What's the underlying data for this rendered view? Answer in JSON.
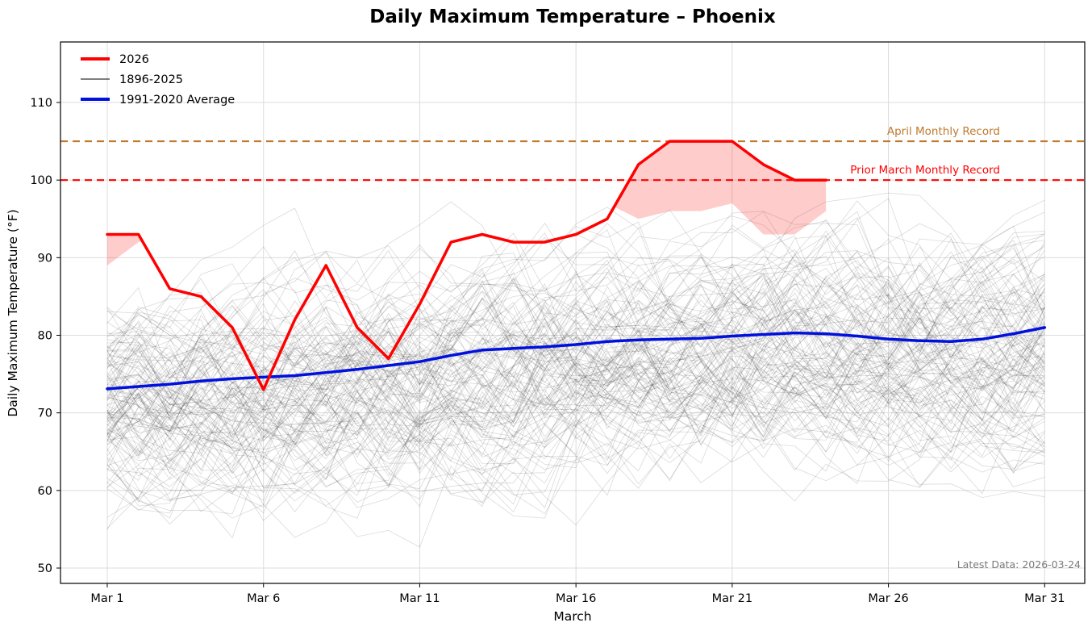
{
  "chart_data": {
    "type": "line",
    "title": "Daily Maximum Temperature – Phoenix",
    "xlabel": "March",
    "ylabel": "Daily Maximum Temperature (°F)",
    "x_tick_days": [
      1,
      6,
      11,
      16,
      21,
      26,
      31
    ],
    "x_tick_labels": [
      "Mar 1",
      "Mar 6",
      "Mar 11",
      "Mar 16",
      "Mar 21",
      "Mar 26",
      "Mar 31"
    ],
    "y_ticks": [
      50,
      60,
      70,
      80,
      90,
      100,
      110
    ],
    "ylim": [
      48,
      117.8
    ],
    "grid": true,
    "legend": [
      {
        "label": "2026",
        "color": "#ff0000"
      },
      {
        "label": "1896-2025",
        "color": "#333333"
      },
      {
        "label": "1991-2020 Average",
        "color": "#0010dd"
      }
    ],
    "series": [
      {
        "name": "2026",
        "color": "#ff0000",
        "width": 3.5,
        "start_day": 1,
        "values": [
          93,
          93,
          86,
          85,
          81,
          73,
          82,
          89,
          81,
          77,
          84,
          92,
          93,
          92,
          92,
          93,
          95,
          102,
          105,
          105,
          105,
          102,
          100,
          100
        ]
      },
      {
        "name": "1991-2020 Average",
        "color": "#0010dd",
        "width": 3.5,
        "start_day": 1,
        "values": [
          73.1,
          73.4,
          73.7,
          74.1,
          74.4,
          74.6,
          74.8,
          75.2,
          75.6,
          76.1,
          76.6,
          77.4,
          78.1,
          78.3,
          78.5,
          78.8,
          79.2,
          79.4,
          79.5,
          79.6,
          79.9,
          80.1,
          80.3,
          80.2,
          79.9,
          79.5,
          79.3,
          79.2,
          79.5,
          80.2,
          81
        ]
      }
    ],
    "historical": {
      "label": "1896-2025",
      "years_count": 130,
      "color": "#1a1a1a",
      "opacity": 0.16,
      "width": 0.8,
      "approx_value_range": [
        50,
        99
      ]
    },
    "historical_daily_max": [
      89,
      92,
      94,
      95,
      93,
      92,
      91,
      93,
      94,
      95,
      93,
      92,
      94,
      95,
      96,
      99,
      97,
      95,
      96,
      96,
      97,
      93,
      93,
      96,
      99,
      96,
      95,
      96,
      95,
      95,
      96
    ],
    "shade": {
      "meaning": "2026 above prior daily record",
      "color": "#ff0000",
      "opacity": 0.2
    },
    "records": [
      {
        "label": "April Monthly Record",
        "value": 105,
        "color": "#bf7a2e"
      },
      {
        "label": "Prior March Monthly Record",
        "value": 100,
        "color": "#ff0000"
      }
    ],
    "annotations": {
      "latest_data": "Latest Data: 2026-03-24"
    }
  }
}
